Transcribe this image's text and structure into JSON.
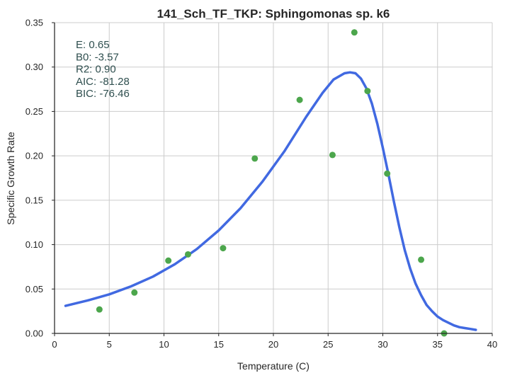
{
  "chart_data": {
    "type": "scatter",
    "title": "141_Sch_TF_TKP: Sphingomonas sp. k6",
    "xlabel": "Temperature (C)",
    "ylabel": "Specific Growth Rate",
    "xlim": [
      0,
      40
    ],
    "ylim": [
      0,
      0.35
    ],
    "grid": true,
    "x_ticks": [
      "0",
      "5",
      "10",
      "15",
      "20",
      "25",
      "30",
      "35",
      "40"
    ],
    "y_ticks": [
      "0.00",
      "0.05",
      "0.10",
      "0.15",
      "0.20",
      "0.25",
      "0.30",
      "0.35"
    ],
    "stats": [
      "E:  0.65",
      "B0:  -3.57",
      "R2:  0.90",
      "AIC: -81.28",
      "BIC: -76.46"
    ],
    "points": {
      "color": "#4ca64c",
      "x": [
        4.1,
        7.3,
        10.4,
        12.2,
        15.4,
        18.3,
        22.4,
        25.4,
        27.4,
        28.6,
        30.4,
        33.5,
        35.6
      ],
      "y": [
        0.027,
        0.046,
        0.082,
        0.089,
        0.096,
        0.197,
        0.263,
        0.201,
        0.339,
        0.273,
        0.18,
        0.083,
        0.0
      ]
    },
    "fit": {
      "color": "#4169e1",
      "x": [
        1.0,
        3.0,
        5.0,
        7.0,
        9.0,
        11.0,
        13.0,
        15.0,
        17.0,
        19.0,
        21.0,
        23.0,
        24.5,
        25.5,
        26.5,
        27.0,
        27.5,
        28.0,
        28.5,
        29.0,
        29.5,
        30.0,
        30.5,
        31.0,
        31.5,
        32.0,
        32.5,
        33.0,
        33.5,
        34.0,
        34.5,
        35.0,
        35.5,
        36.0,
        36.5,
        37.0,
        37.5,
        38.0,
        38.5
      ],
      "y": [
        0.031,
        0.037,
        0.044,
        0.053,
        0.064,
        0.078,
        0.095,
        0.116,
        0.141,
        0.171,
        0.205,
        0.244,
        0.271,
        0.286,
        0.293,
        0.294,
        0.293,
        0.287,
        0.276,
        0.259,
        0.236,
        0.209,
        0.18,
        0.149,
        0.12,
        0.094,
        0.073,
        0.056,
        0.043,
        0.032,
        0.025,
        0.019,
        0.015,
        0.012,
        0.009,
        0.007,
        0.006,
        0.005,
        0.004
      ]
    }
  }
}
